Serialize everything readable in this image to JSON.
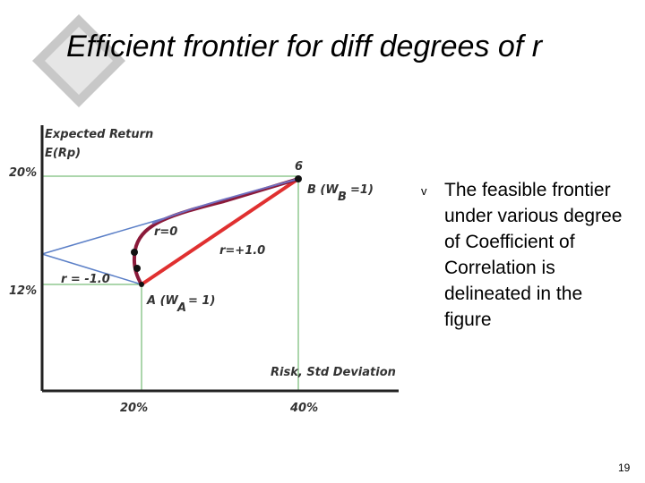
{
  "slide": {
    "title": "Efficient frontier for diff degrees of r",
    "figure": {
      "y_axis_label": [
        "Expected Return",
        "E(Rp)"
      ],
      "y_labels": [
        "20%",
        "12%"
      ],
      "x_labels": [
        "20%",
        "40%"
      ],
      "x_axis_label": "Risk, Std Deviation",
      "point_b": {
        "number": "6",
        "label": "B (W",
        "subscript": "B",
        "suffix": "=1)"
      },
      "point_a": {
        "label": "A (W",
        "subscript": "A",
        "suffix": "= 1)"
      },
      "curve_labels": [
        "r=0",
        "r=+1.0",
        "r = -1.0"
      ]
    },
    "bullet": {
      "marker": "v",
      "text": "The feasible frontier under various degree of Coefficient of Correlation is delineated in the figure"
    },
    "page_number": "19"
  }
}
